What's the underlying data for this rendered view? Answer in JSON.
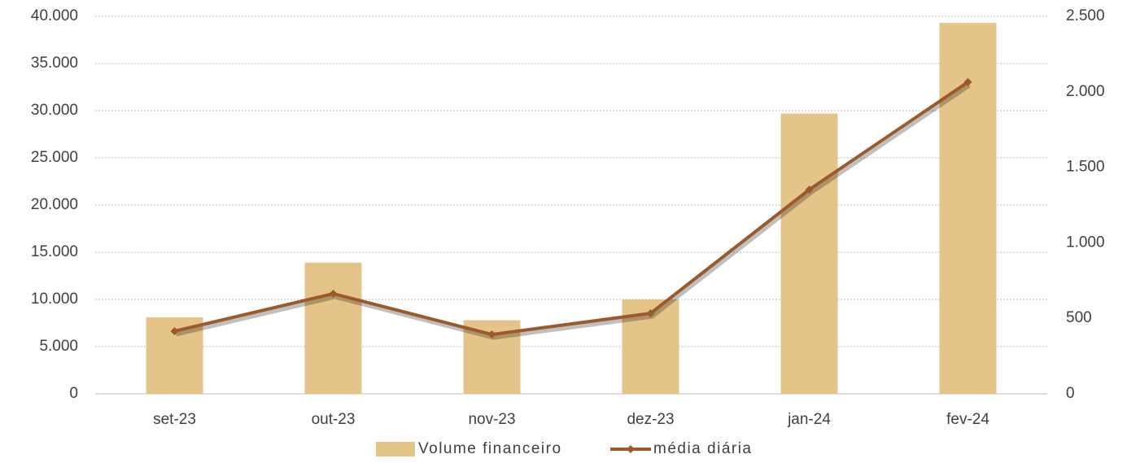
{
  "chart_data": {
    "type": "bar_line",
    "categories": [
      "set-23",
      "out-23",
      "nov-23",
      "dez-23",
      "jan-24",
      "fev-24"
    ],
    "series": [
      {
        "name": "Volume financeiro",
        "type": "bar",
        "color": "#e5c48a",
        "values": [
          8100,
          13900,
          7800,
          10000,
          29700,
          39300
        ]
      },
      {
        "name": "média diária",
        "type": "line",
        "axis": "y2",
        "color": "#9c5a2c",
        "values": [
          415,
          663,
          393,
          533,
          1352,
          2064
        ]
      }
    ],
    "ylim": [
      0,
      40000
    ],
    "yticks": [
      0,
      {
        "value": 5000,
        "label": "5.000"
      },
      {
        "value": 10000,
        "label": "10.000"
      },
      {
        "value": 15000,
        "label": "15.000"
      },
      {
        "value": 20000,
        "label": "20.000"
      },
      {
        "value": 25000,
        "label": "25.000"
      },
      {
        "value": 30000,
        "label": "30.000"
      },
      {
        "value": 35000,
        "label": "35.000"
      },
      {
        "value": 40000,
        "label": "40.000"
      }
    ],
    "y2lim": [
      0,
      2500
    ],
    "y2ticks": [
      0,
      500,
      {
        "value": 1000,
        "label": "1.000"
      },
      {
        "value": 1500,
        "label": "1.500"
      },
      {
        "value": 2000,
        "label": "2.000"
      },
      {
        "value": 2500,
        "label": "2.500"
      }
    ],
    "grid": true,
    "legend": "bottom"
  }
}
